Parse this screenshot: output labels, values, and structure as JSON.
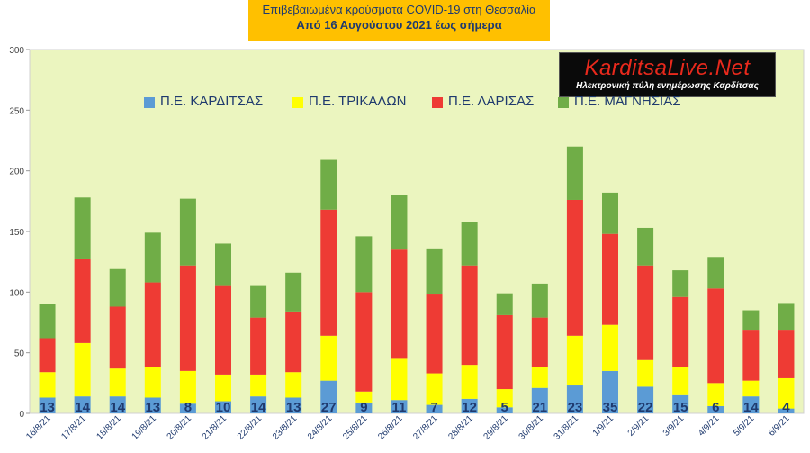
{
  "title": {
    "line1": "Επιβεβαιωμένα κρούσματα COVID-19 στη Θεσσαλία",
    "line2": "Από 16 Αυγούστου 2021 έως σήμερα"
  },
  "logo": {
    "text": "KarditsaLive.Net",
    "subtitle": "Ηλεκτρονική πύλη ενημέρωσης Καρδίτσας"
  },
  "chart_data": {
    "type": "bar",
    "stacked": true,
    "categories": [
      "16/8/21",
      "17/8/21",
      "18/8/21",
      "19/8/21",
      "20/8/21",
      "21/8/21",
      "22/8/21",
      "23/8/21",
      "24/8/21",
      "25/8/21",
      "26/8/21",
      "27/8/21",
      "28/8/21",
      "29/8/21",
      "30/8/21",
      "31/8/21",
      "1/9/21",
      "2/9/21",
      "3/9/21",
      "4/9/21",
      "5/9/21",
      "6/9/21"
    ],
    "series": [
      {
        "name": "Π.Ε. ΚΑΡΔΙΤΣΑΣ",
        "color": "#5b9bd5",
        "values": [
          13,
          14,
          14,
          13,
          8,
          10,
          14,
          13,
          27,
          9,
          11,
          7,
          12,
          5,
          21,
          23,
          35,
          22,
          15,
          6,
          14,
          4
        ]
      },
      {
        "name": "Π.Ε. ΤΡΙΚΑΛΩΝ",
        "color": "#ffff00",
        "values": [
          21,
          44,
          23,
          25,
          27,
          22,
          18,
          21,
          37,
          9,
          34,
          26,
          28,
          15,
          17,
          41,
          38,
          22,
          23,
          19,
          13,
          25
        ]
      },
      {
        "name": "Π.Ε. ΛΑΡΙΣΑΣ",
        "color": "#ee3b34",
        "values": [
          28,
          69,
          51,
          70,
          87,
          73,
          47,
          50,
          104,
          82,
          90,
          65,
          82,
          61,
          41,
          112,
          75,
          78,
          58,
          78,
          42,
          40
        ]
      },
      {
        "name": "Π.Ε. ΜΑΓΝΗΣΙΑΣ",
        "color": "#70ad47",
        "values": [
          28,
          51,
          31,
          41,
          55,
          35,
          26,
          32,
          41,
          46,
          45,
          38,
          36,
          18,
          28,
          44,
          34,
          31,
          22,
          26,
          16,
          22
        ]
      }
    ],
    "data_labels": [
      13,
      14,
      14,
      13,
      8,
      10,
      14,
      13,
      27,
      9,
      11,
      7,
      12,
      5,
      21,
      23,
      35,
      22,
      15,
      6,
      14,
      4
    ],
    "y_ticks": [
      0,
      50,
      100,
      150,
      200,
      250,
      300
    ],
    "ylim": [
      0,
      300
    ],
    "grid": false,
    "legend_position": "top",
    "plot_background": "#ebf5bf"
  }
}
